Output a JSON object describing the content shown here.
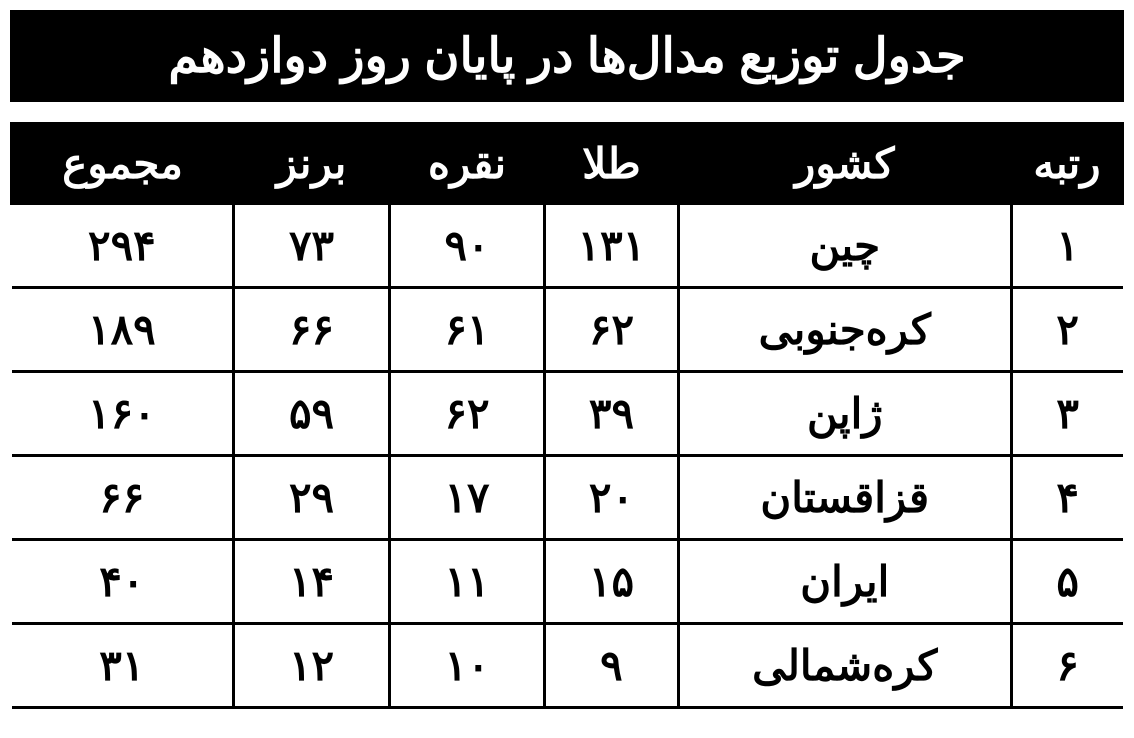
{
  "title": "جدول توزیع مدال‌ها در پایان روز دوازدهم",
  "table": {
    "columns": [
      "رتبه",
      "کشور",
      "طلا",
      "نقره",
      "برنز",
      "مجموع"
    ],
    "col_widths_pct": [
      10,
      30,
      12,
      14,
      14,
      20
    ],
    "header_bg": "#000000",
    "header_fg": "#ffffff",
    "cell_bg": "#ffffff",
    "cell_fg": "#000000",
    "border_color": "#000000",
    "header_fontsize": 42,
    "cell_fontsize": 42,
    "font_weight": "bold",
    "rows": [
      {
        "rank": "۱",
        "country": "چین",
        "gold": "۱۳۱",
        "silver": "۹۰",
        "bronze": "۷۳",
        "total": "۲۹۴"
      },
      {
        "rank": "۲",
        "country": "کره‌جنوبی",
        "gold": "۶۲",
        "silver": "۶۱",
        "bronze": "۶۶",
        "total": "۱۸۹"
      },
      {
        "rank": "۳",
        "country": "ژاپن",
        "gold": "۳۹",
        "silver": "۶۲",
        "bronze": "۵۹",
        "total": "۱۶۰"
      },
      {
        "rank": "۴",
        "country": "قزاقستان",
        "gold": "۲۰",
        "silver": "۱۷",
        "bronze": "۲۹",
        "total": "۶۶"
      },
      {
        "rank": "۵",
        "country": "ایران",
        "gold": "۱۵",
        "silver": "۱۱",
        "bronze": "۱۴",
        "total": "۴۰"
      },
      {
        "rank": "۶",
        "country": "کره‌شمالی",
        "gold": "۹",
        "silver": "۱۰",
        "bronze": "۱۲",
        "total": "۳۱"
      }
    ]
  },
  "title_bar": {
    "bg": "#000000",
    "fg": "#ffffff",
    "fontsize": 48,
    "font_weight": "bold"
  },
  "background_color": "#ffffff"
}
